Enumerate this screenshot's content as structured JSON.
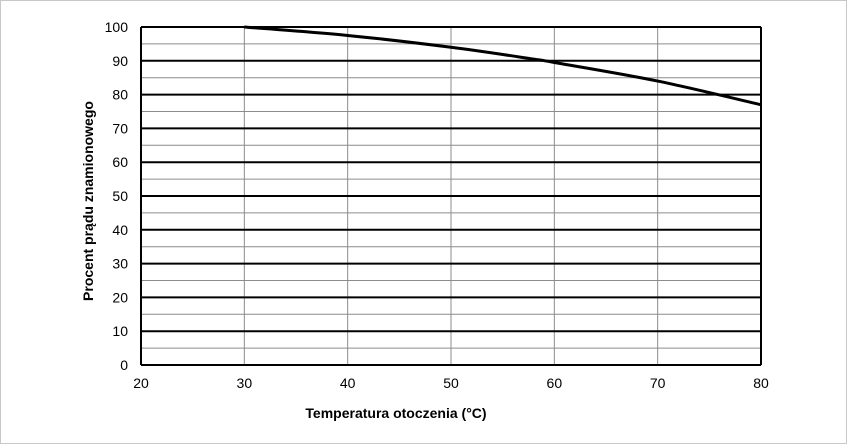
{
  "chart_data": {
    "type": "line",
    "title": "",
    "xlabel": "Temperatura otoczenia  (°C)",
    "ylabel": "Procent prądu znamionowego",
    "xlim": [
      20,
      80
    ],
    "ylim": [
      0,
      100
    ],
    "x_ticks": [
      20,
      30,
      40,
      50,
      60,
      70,
      80
    ],
    "y_ticks": [
      0,
      10,
      20,
      30,
      40,
      50,
      60,
      70,
      80,
      90,
      100
    ],
    "grid": true,
    "legend": "none",
    "series": [
      {
        "x": [
          30,
          40,
          50,
          58,
          60,
          70,
          80
        ],
        "y": [
          100,
          97.5,
          94,
          90.5,
          89.5,
          84,
          77
        ]
      }
    ],
    "colors": {
      "line": "#000000",
      "major_grid": "#000000",
      "minor_grid": "#8c8c8c",
      "frame": "#c8c8c8"
    }
  }
}
